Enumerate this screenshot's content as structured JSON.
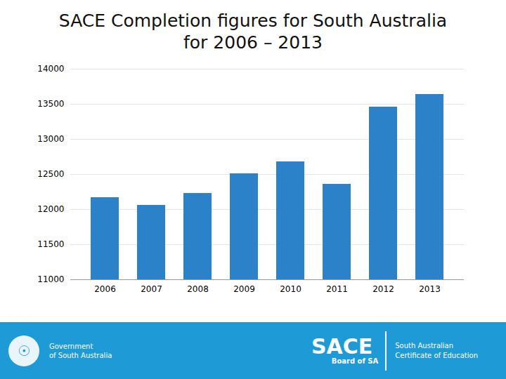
{
  "chart_data": {
    "type": "bar",
    "title": "SACE Completion figures for South Australia for 2006 – 2013",
    "categories": [
      "2006",
      "2007",
      "2008",
      "2009",
      "2010",
      "2011",
      "2012",
      "2013"
    ],
    "values": [
      12170,
      12060,
      12230,
      12510,
      12680,
      12360,
      13460,
      13640
    ],
    "color": "#2b82c9",
    "ylim": [
      11000,
      14000
    ],
    "yticks": [
      11000,
      11500,
      12000,
      12500,
      13000,
      13500,
      14000
    ],
    "grid": true,
    "annotations": [
      "☉",
      "Government",
      "of South Australia",
      "SACE",
      "Board of SA",
      "South Australian",
      "Certificate of Education"
    ]
  }
}
